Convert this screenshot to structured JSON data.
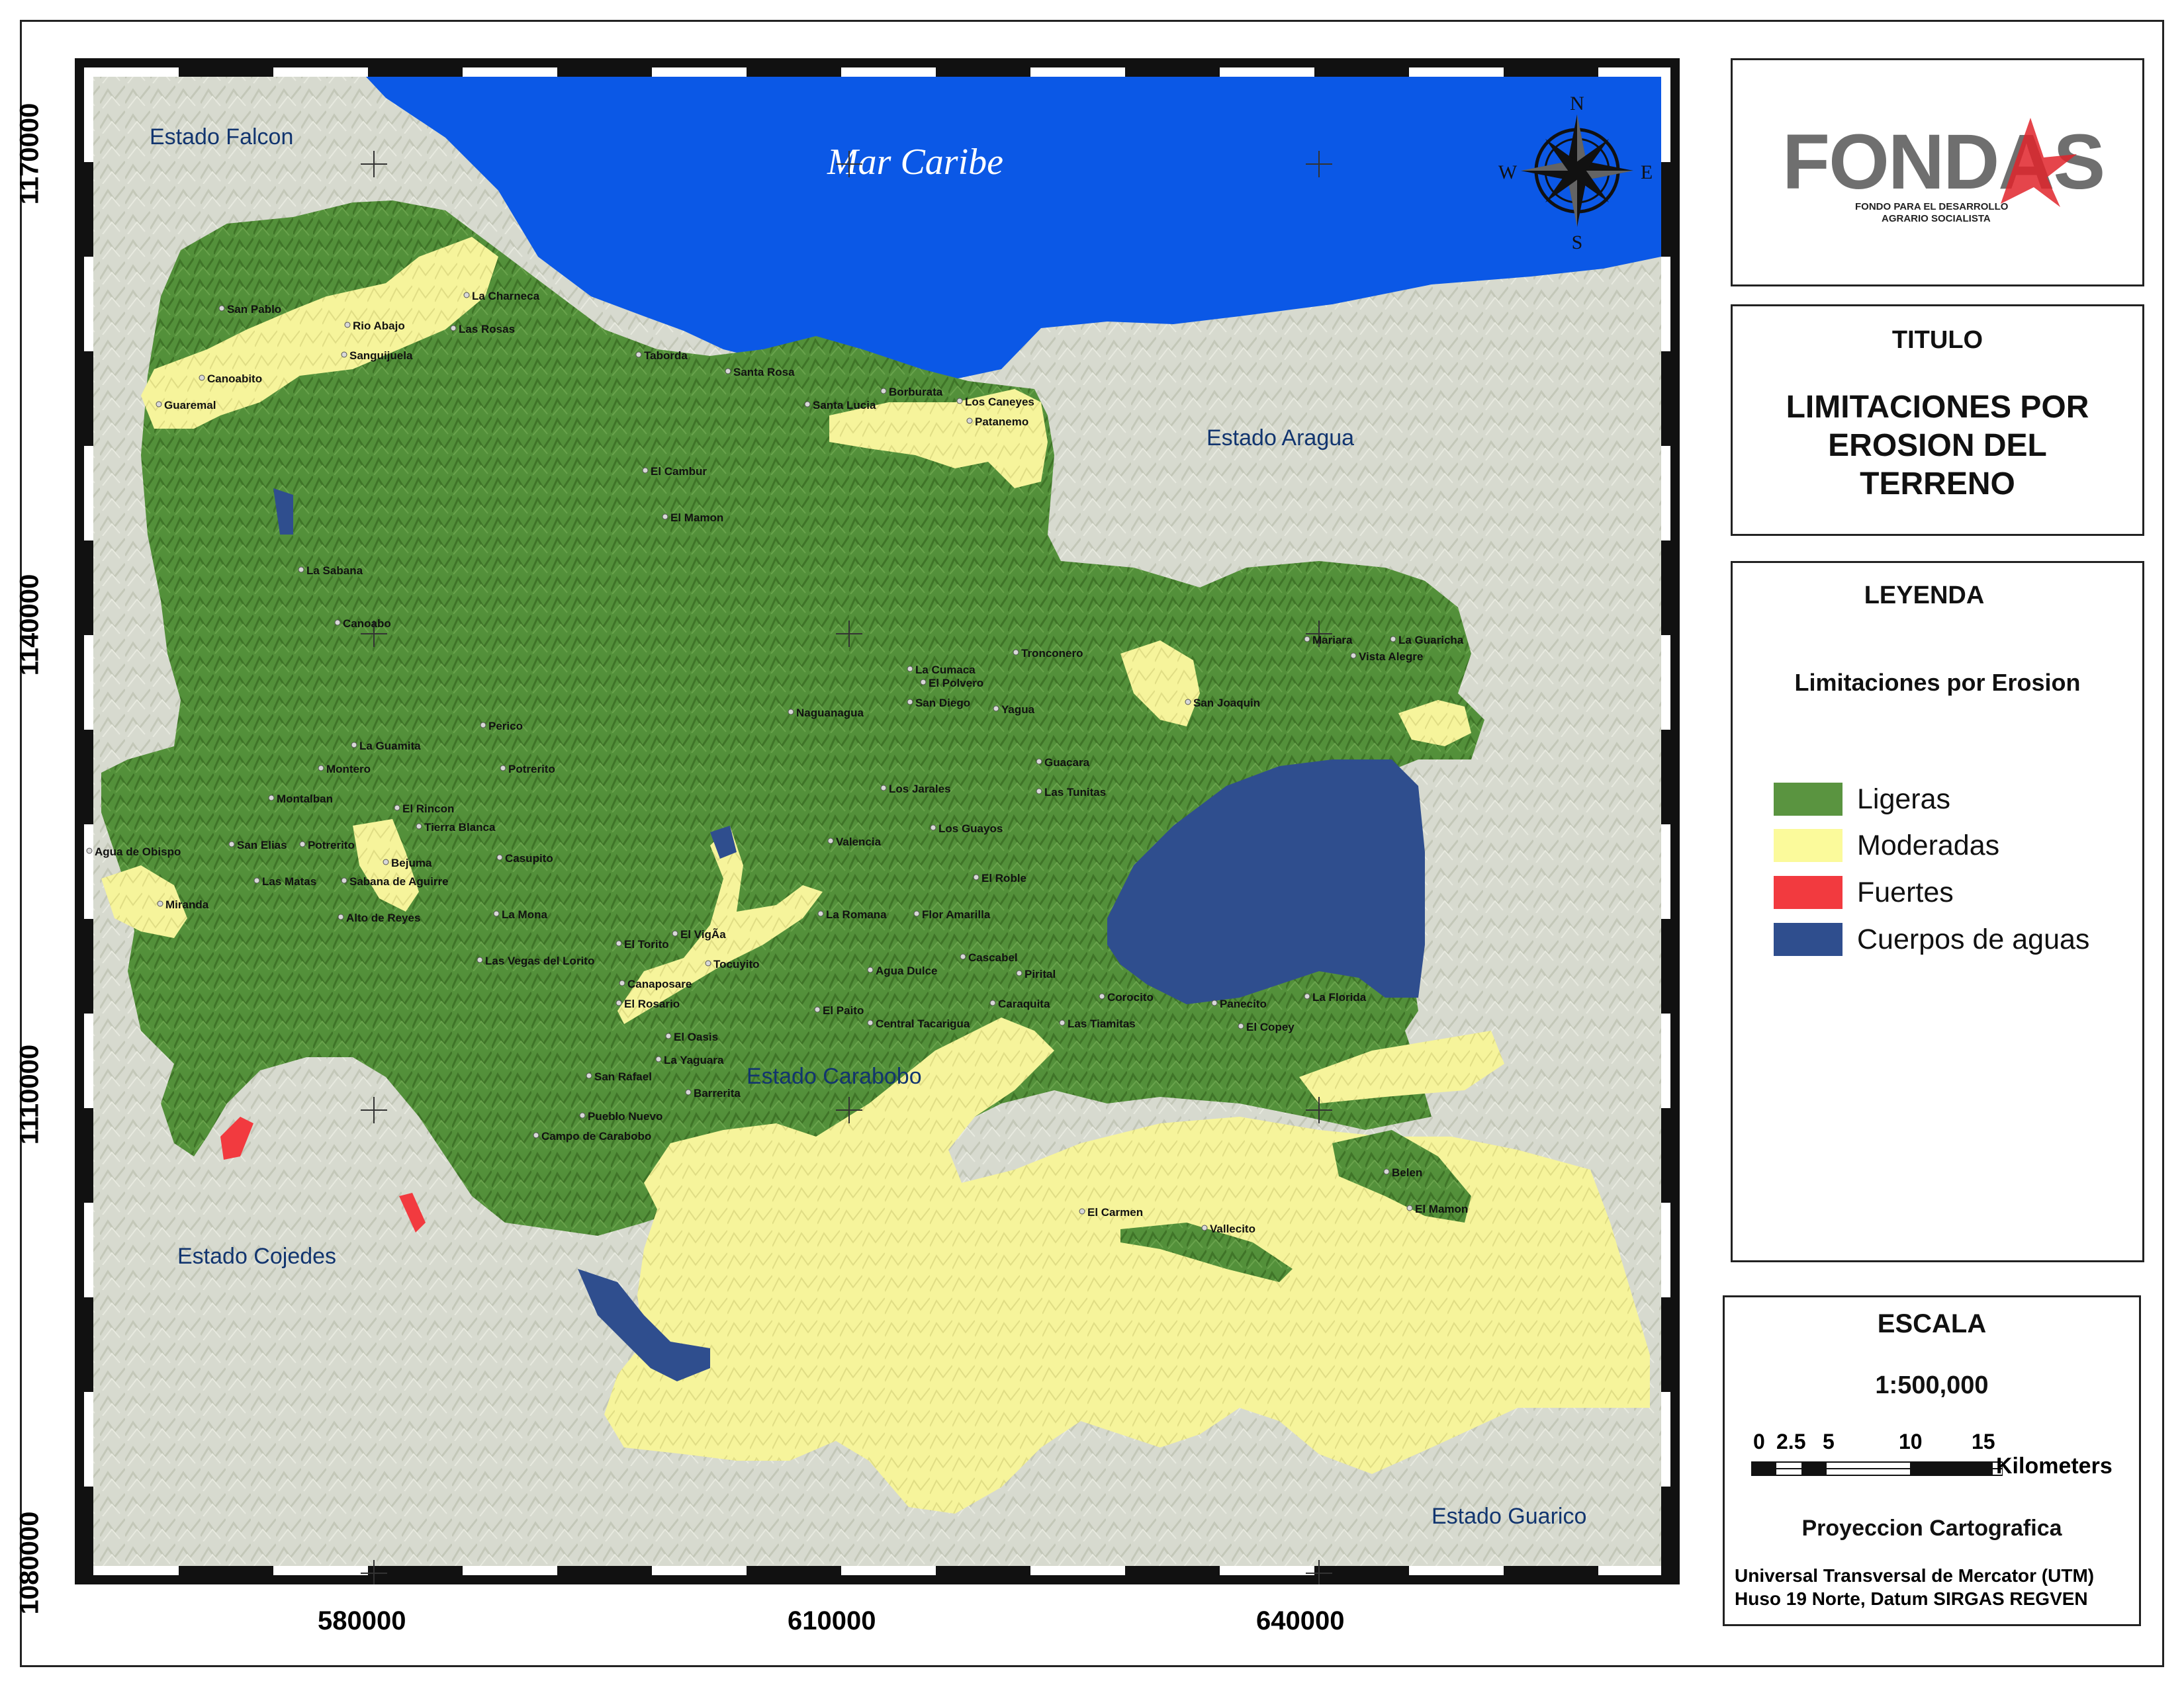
{
  "map": {
    "sea_label": "Mar Caribe",
    "states": [
      {
        "name": "Estado Falcon"
      },
      {
        "name": "Estado Aragua"
      },
      {
        "name": "Estado Carabobo"
      },
      {
        "name": "Estado Cojedes"
      },
      {
        "name": "Estado Guarico"
      }
    ],
    "y_axis_labels": [
      "1170000",
      "1140000",
      "1110000",
      "1080000"
    ],
    "x_axis_labels": [
      "580000",
      "610000",
      "640000"
    ],
    "compass": {
      "n": "N",
      "s": "S",
      "e": "E",
      "w": "W"
    },
    "places": [
      "San Pablo",
      "La Charneca",
      "Rio Abajo",
      "Las Rosas",
      "Sanguijuela",
      "Canoabito",
      "Guaremal",
      "Taborda",
      "Santa Rosa",
      "Borburata",
      "Los Caneyes",
      "Santa Lucia",
      "Patanemo",
      "El Cambur",
      "El Mamon",
      "La Sabana",
      "Canoabo",
      "Mariara",
      "La Guaricha",
      "Vista Alegre",
      "Tronconero",
      "La Cumaca",
      "El Polvero",
      "San Diego",
      "Yagua",
      "San Joaquin",
      "Naguanagua",
      "Perico",
      "La Guamita",
      "Montero",
      "Potrerito",
      "Guacara",
      "Los Jarales",
      "Las Tunitas",
      "Montalban",
      "El Rincon",
      "Tierra Blanca",
      "Los Guayos",
      "Valencia",
      "Agua de Obispo",
      "San Elias",
      "Potrerito",
      "Bejuma",
      "Casupito",
      "El Roble",
      "Las Matas",
      "Sabana de Aguirre",
      "Miranda",
      "Alto de Reyes",
      "La Mona",
      "La Romana",
      "Flor Amarilla",
      "El Torito",
      "El VigÃ­a",
      "Las Vegas del Lorito",
      "Cascabel",
      "Tocuyito",
      "Agua Dulce",
      "Pirital",
      "Canaposare",
      "El Rosario",
      "Caraquita",
      "Corocito",
      "Panecito",
      "La Florida",
      "El Paito",
      "Central Tacarigua",
      "Las Tiamitas",
      "El Copey",
      "El Oasis",
      "La Yaguara",
      "San Rafael",
      "Barrerita",
      "Pueblo Nuevo",
      "Campo de Carabobo",
      "Belen",
      "El Mamon",
      "El Carmen",
      "Vallecito"
    ]
  },
  "logo": {
    "brand": "FONDAS",
    "tagline_1": "FONDO PARA EL DESARROLLO",
    "tagline_2": "AGRARIO SOCIALISTA"
  },
  "title_panel": {
    "heading": "TITULO",
    "title_lines": [
      "LIMITACIONES POR",
      "EROSION DEL",
      "TERRENO"
    ]
  },
  "legend": {
    "heading": "LEYENDA",
    "subheading": "Limitaciones por Erosion",
    "items": [
      {
        "label": "Ligeras",
        "color": "#5a9440"
      },
      {
        "label": "Moderadas",
        "color": "#fbfa9b"
      },
      {
        "label": "Fuertes",
        "color": "#f23a3f"
      },
      {
        "label": "Cuerpos de aguas",
        "color": "#2f4e8e"
      }
    ]
  },
  "scale": {
    "heading": "ESCALA",
    "ratio": "1:500,000",
    "ticks": [
      "0",
      "2.5",
      "5",
      "10",
      "15"
    ],
    "unit": "Kilometers",
    "projection_heading": "Proyeccion Cartografica",
    "projection_line_1": "Universal Transversal de Mercator (UTM)",
    "projection_line_2": "Huso 19 Norte, Datum SIRGAS REGVEN"
  },
  "colors": {
    "sea": "#0d59e3",
    "lake": "#2f4e8e",
    "terrain": "#d6d9ce",
    "green": "#4f8a36",
    "yellow": "#f6f49a",
    "red": "#f23a3f"
  }
}
